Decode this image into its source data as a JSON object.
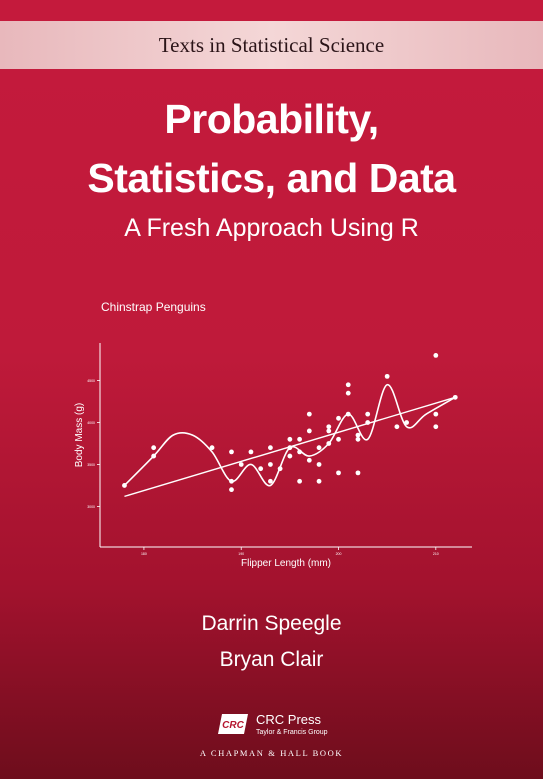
{
  "series": "Texts in Statistical Science",
  "title_line1": "Probability,",
  "title_line2": "Statistics, and Data",
  "subtitle": "A Fresh Approach Using R",
  "authors": [
    "Darrin Speegle",
    "Bryan Clair"
  ],
  "publisher": {
    "logo_text": "CRC",
    "name": "CRC Press",
    "group": "Taylor & Francis Group",
    "imprint": "A CHAPMAN & HALL BOOK"
  },
  "colors": {
    "background": "#c41a3c",
    "band": "#f4d7d7",
    "text": "#ffffff"
  },
  "chart_data": {
    "type": "scatter",
    "title": "Chinstrap Penguins",
    "xlabel": "Flipper Length (mm)",
    "ylabel": "Body Mass (g)",
    "xlim": [
      176,
      213
    ],
    "ylim": [
      2600,
      4900
    ],
    "x_ticks": [
      180,
      190,
      200,
      210
    ],
    "y_ticks": [
      3000,
      3500,
      4000,
      4500
    ],
    "x": [
      178,
      181,
      181,
      187,
      189,
      189,
      189,
      190,
      191,
      192,
      193,
      193,
      193,
      194,
      195,
      195,
      195,
      196,
      196,
      196,
      197,
      197,
      197,
      198,
      198,
      198,
      199,
      199,
      199,
      200,
      200,
      200,
      201,
      201,
      201,
      202,
      202,
      202,
      203,
      203,
      205,
      206,
      207,
      210,
      210,
      210,
      212
    ],
    "y": [
      3250,
      3700,
      3600,
      3700,
      3650,
      3300,
      3200,
      3500,
      3650,
      3450,
      3500,
      3300,
      3700,
      3450,
      3800,
      3700,
      3600,
      3800,
      3650,
      3300,
      3550,
      4100,
      3900,
      3700,
      3300,
      3500,
      3750,
      3950,
      3900,
      3400,
      4050,
      3800,
      4450,
      4350,
      4100,
      3850,
      3800,
      3400,
      4000,
      4100,
      4550,
      3950,
      4000,
      4800,
      3950,
      4100,
      4300
    ],
    "series": [
      {
        "type": "line",
        "x": [
          178,
          212
        ],
        "y": [
          3120,
          4300
        ]
      },
      {
        "type": "smooth",
        "x": [
          178,
          181,
          183,
          185,
          187,
          189,
          191,
          193,
          195,
          197,
          199,
          201,
          203,
          205,
          207,
          209,
          212
        ],
        "y": [
          3250,
          3600,
          3850,
          3850,
          3650,
          3300,
          3500,
          3250,
          3700,
          3600,
          3750,
          4100,
          3800,
          4450,
          3950,
          4100,
          4300
        ]
      }
    ],
    "grid": false
  }
}
